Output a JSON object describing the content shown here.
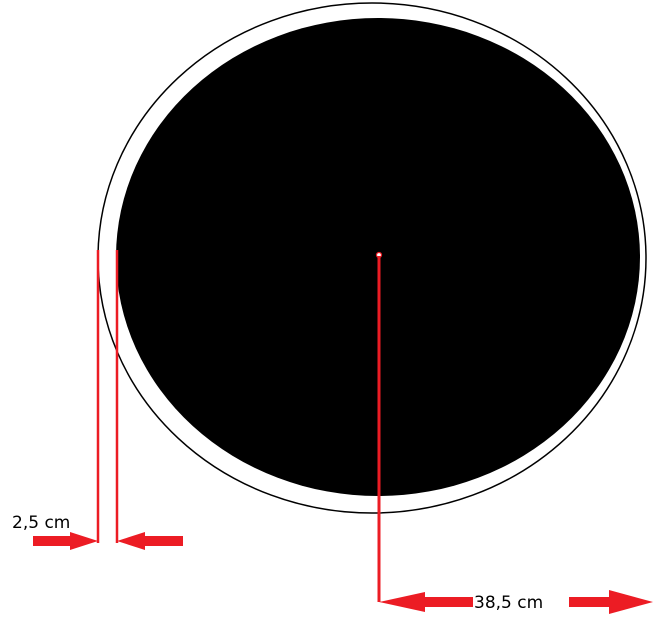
{
  "diagram": {
    "border_thickness_label": "2,5 cm",
    "radius_label": "38,5 cm"
  },
  "colors": {
    "background": "#ffffff",
    "outer_ring_stroke": "#000000",
    "inner_disc_fill": "#000000",
    "dimension_lines": "#ec1c24"
  }
}
